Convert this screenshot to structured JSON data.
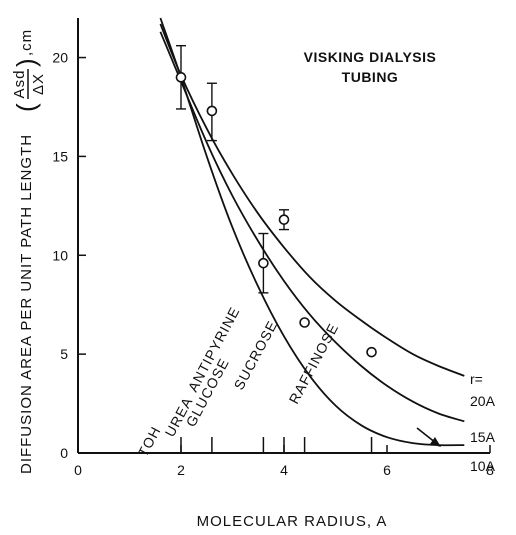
{
  "chart_data": {
    "type": "line",
    "xlabel": "MOLECULAR RADIUS, A",
    "ylabel_main": "DIFFUSION AREA PER UNIT PATH LENGTH",
    "ylabel_num": "Asd",
    "ylabel_den": "ΔX",
    "ylabel_unit": ",cm",
    "xlim": [
      0,
      8
    ],
    "ylim": [
      0,
      22
    ],
    "xticks": [
      0,
      2,
      4,
      6,
      8
    ],
    "yticks": [
      0,
      5,
      10,
      15,
      20
    ],
    "annotation": [
      "VISKING DIALYSIS",
      "TUBING"
    ],
    "curve_param_label": "r=",
    "series": [
      {
        "label": "20A",
        "x": [
          1.6,
          2.0,
          2.5,
          3.0,
          3.5,
          4.0,
          4.5,
          5.0,
          5.5,
          6.0,
          6.5,
          7.0,
          7.5
        ],
        "y": [
          21.7,
          19.1,
          16.4,
          14.1,
          12.1,
          10.4,
          8.9,
          7.7,
          6.7,
          5.8,
          5.0,
          4.4,
          3.9
        ]
      },
      {
        "label": "15A",
        "x": [
          1.6,
          2.0,
          2.5,
          3.0,
          3.5,
          4.0,
          4.5,
          5.0,
          5.5,
          6.0,
          6.5,
          7.0,
          7.5
        ],
        "y": [
          21.3,
          18.8,
          15.7,
          13.0,
          10.7,
          8.7,
          7.0,
          5.6,
          4.4,
          3.4,
          2.6,
          2.0,
          1.6
        ]
      },
      {
        "label": "10A",
        "x": [
          1.6,
          2.0,
          2.5,
          3.0,
          3.5,
          4.0,
          4.5,
          5.0,
          5.5,
          6.0,
          6.5,
          7.0,
          7.5
        ],
        "y": [
          22.0,
          19.0,
          15.0,
          11.4,
          8.4,
          5.9,
          3.9,
          2.4,
          1.4,
          0.8,
          0.5,
          0.4,
          0.4
        ]
      }
    ],
    "points": [
      {
        "x": 2.0,
        "y": 19.0,
        "err": [
          17.4,
          20.6
        ]
      },
      {
        "x": 2.6,
        "y": 17.3,
        "err": [
          15.8,
          18.7
        ]
      },
      {
        "x": 3.6,
        "y": 9.6,
        "err": [
          8.1,
          11.1
        ]
      },
      {
        "x": 4.0,
        "y": 11.8,
        "err": [
          11.3,
          12.3
        ]
      },
      {
        "x": 4.4,
        "y": 6.6
      },
      {
        "x": 5.7,
        "y": 5.1
      }
    ],
    "molecules": [
      {
        "name": "TOH",
        "x": 2.0
      },
      {
        "name": "UREA",
        "x": 2.6
      },
      {
        "name": "GLUCOSE",
        "x": 3.6
      },
      {
        "name": "ANTIPYRINE",
        "x": 4.0
      },
      {
        "name": "SUCROSE",
        "x": 4.4
      },
      {
        "name": "RAFFINOSE",
        "x": 5.7
      }
    ]
  }
}
